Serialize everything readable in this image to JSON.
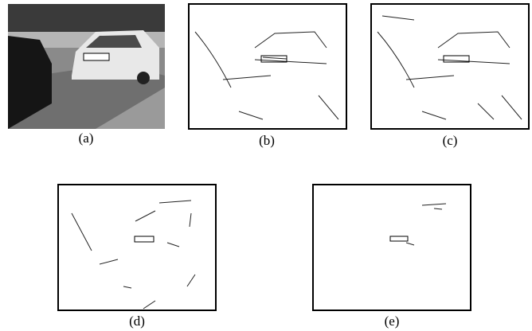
{
  "figure": {
    "panels": [
      {
        "caption": "(a)"
      },
      {
        "caption": "(b)"
      },
      {
        "caption": "(c)"
      },
      {
        "caption": "(d)"
      },
      {
        "caption": "(e)"
      }
    ]
  }
}
